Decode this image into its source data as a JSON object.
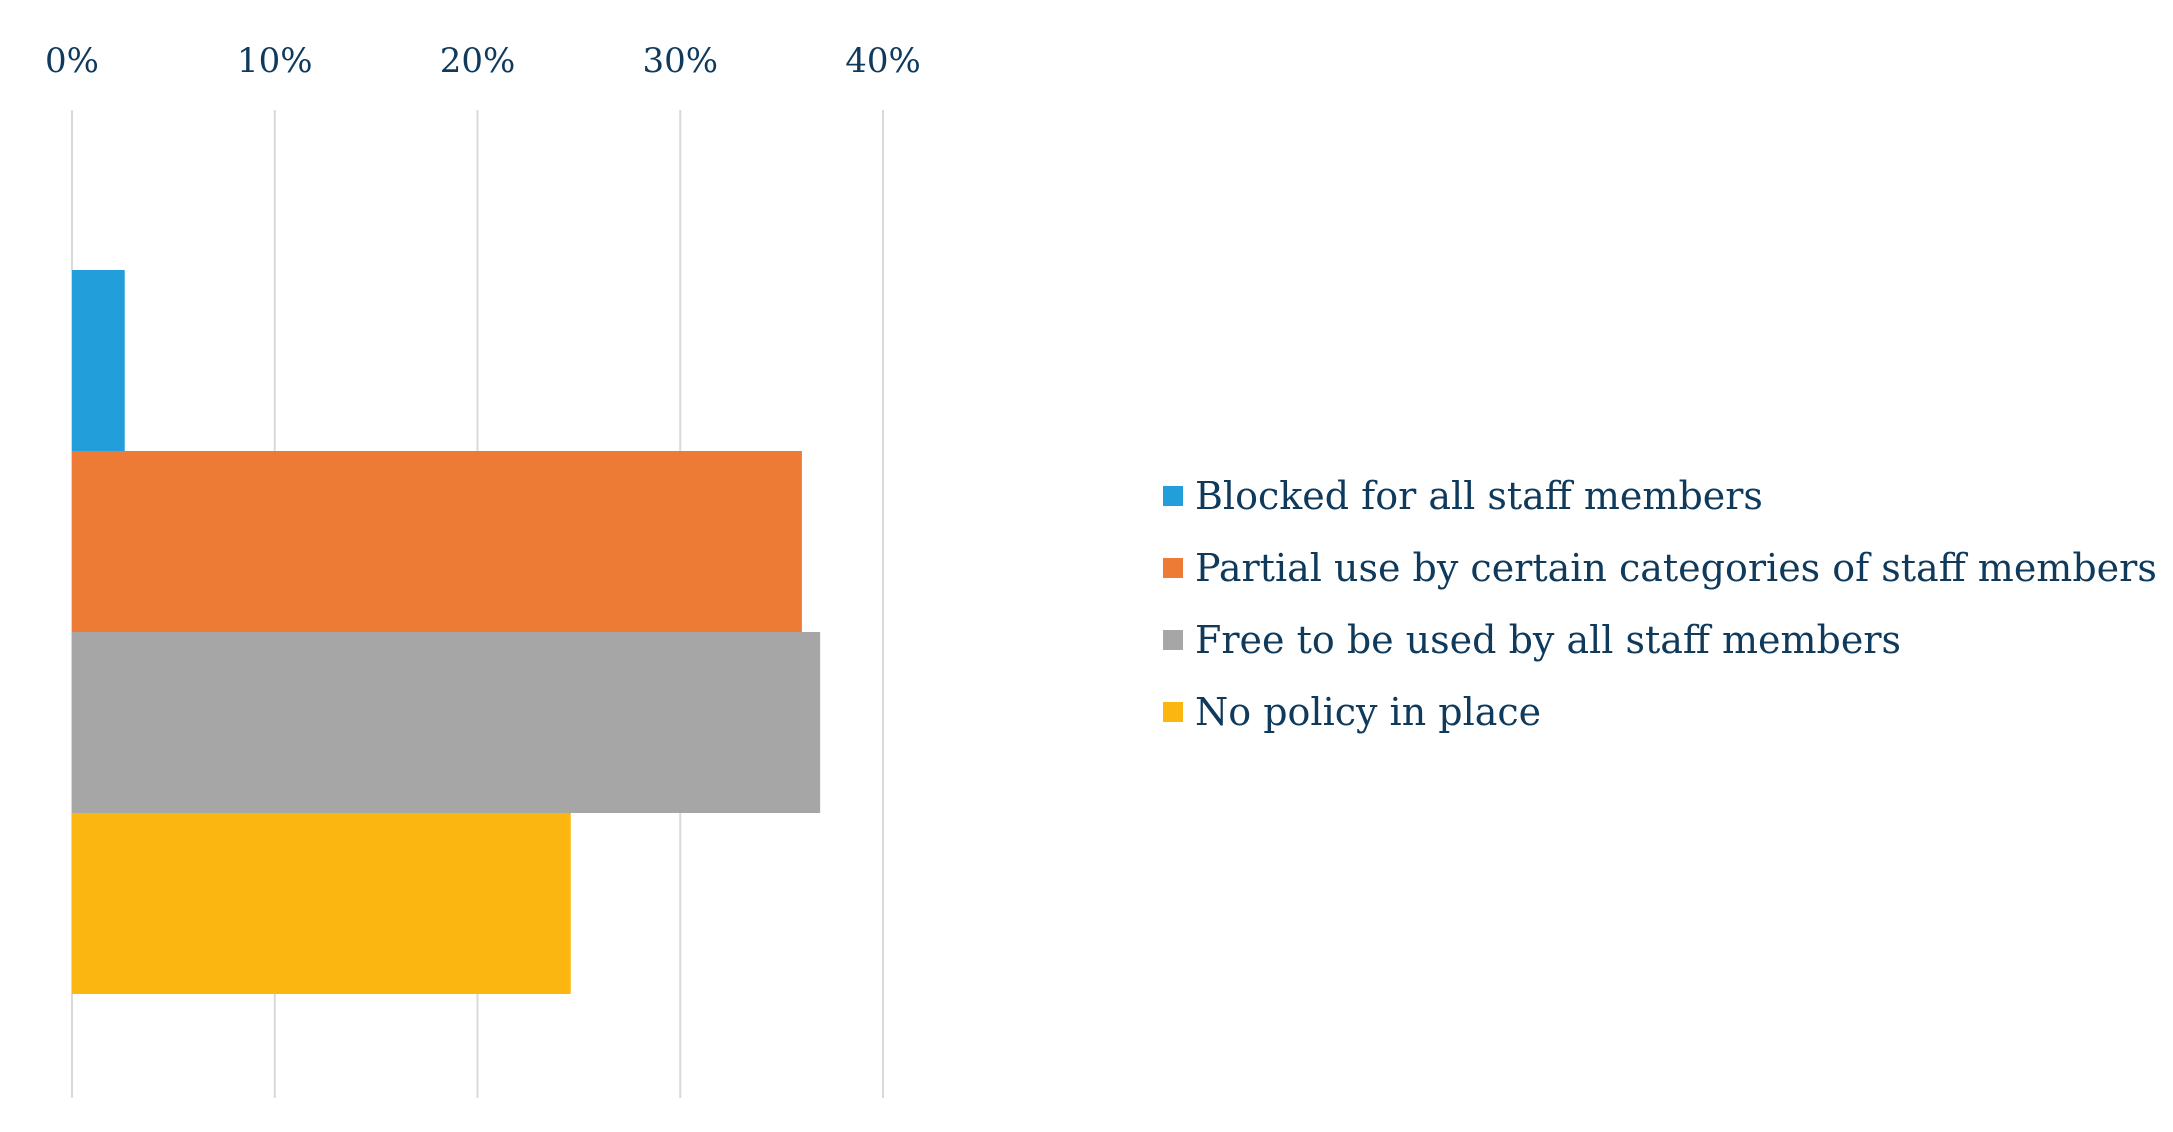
{
  "chart_data": {
    "type": "bar",
    "orientation": "horizontal",
    "xlim": [
      0,
      40
    ],
    "x_ticks": [
      "0%",
      "10%",
      "20%",
      "30%",
      "40%"
    ],
    "x_tick_values": [
      0,
      10,
      20,
      30,
      40
    ],
    "x_axis_position": "top",
    "grid": true,
    "legend_position": "right",
    "series": [
      {
        "name": "Blocked for all staff members",
        "value": 2.6,
        "color": "#229fdb"
      },
      {
        "name": "Partial use by certain categories of staff members",
        "value": 36.0,
        "color": "#ee7b35"
      },
      {
        "name": "Free to be used by all staff members",
        "value": 36.9,
        "color": "#a6a6a6"
      },
      {
        "name": "No policy in place",
        "value": 24.6,
        "color": "#fbb70f"
      }
    ]
  },
  "colors": {
    "gridline": "#d9d9d9",
    "text": "#0f3a5c"
  }
}
